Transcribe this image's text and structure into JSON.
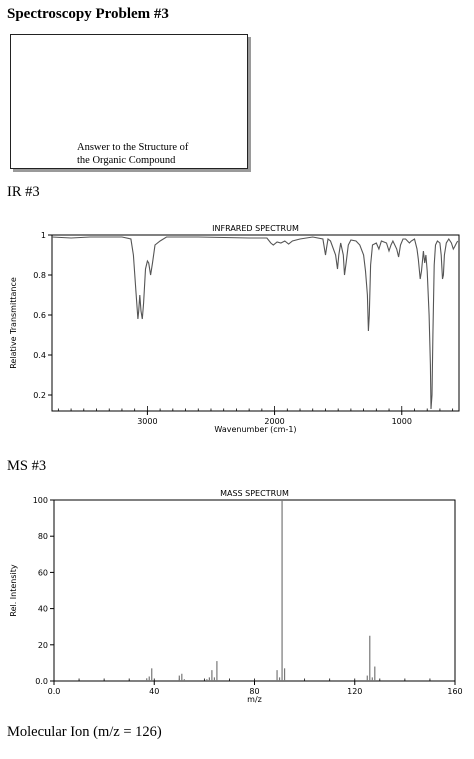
{
  "page": {
    "title": "Spectroscopy Problem #3",
    "answer_box_text": [
      "Answer to the Structure of",
      "the Organic Compound"
    ],
    "ir_label": "IR #3",
    "ms_label": "MS #3",
    "molecular_ion": "Molecular Ion (m/z = 126)"
  },
  "chart_data": [
    {
      "type": "line",
      "title": "INFRARED SPECTRUM",
      "xlabel": "Wavenumber (cm-1)",
      "ylabel": "Relative Transmittance",
      "x_reversed": true,
      "xlim": [
        3750,
        550
      ],
      "ylim": [
        0.12,
        1.0
      ],
      "x_ticks": [
        3000,
        2000,
        1000
      ],
      "y_ticks": [
        0.2,
        0.4,
        0.6,
        0.8,
        1
      ],
      "grid": false,
      "points": [
        [
          3750,
          0.99
        ],
        [
          3600,
          0.985
        ],
        [
          3450,
          0.99
        ],
        [
          3200,
          0.99
        ],
        [
          3130,
          0.98
        ],
        [
          3110,
          0.9
        ],
        [
          3090,
          0.72
        ],
        [
          3075,
          0.58
        ],
        [
          3068,
          0.62
        ],
        [
          3060,
          0.7
        ],
        [
          3050,
          0.62
        ],
        [
          3040,
          0.58
        ],
        [
          3030,
          0.66
        ],
        [
          3015,
          0.83
        ],
        [
          3000,
          0.87
        ],
        [
          2990,
          0.86
        ],
        [
          2975,
          0.8
        ],
        [
          2960,
          0.86
        ],
        [
          2940,
          0.95
        ],
        [
          2900,
          0.97
        ],
        [
          2850,
          0.99
        ],
        [
          2600,
          0.99
        ],
        [
          2200,
          0.985
        ],
        [
          2060,
          0.985
        ],
        [
          2030,
          0.96
        ],
        [
          2010,
          0.95
        ],
        [
          1980,
          0.965
        ],
        [
          1950,
          0.96
        ],
        [
          1920,
          0.97
        ],
        [
          1890,
          0.955
        ],
        [
          1860,
          0.97
        ],
        [
          1800,
          0.98
        ],
        [
          1700,
          0.99
        ],
        [
          1620,
          0.98
        ],
        [
          1600,
          0.9
        ],
        [
          1590,
          0.94
        ],
        [
          1580,
          0.98
        ],
        [
          1560,
          0.97
        ],
        [
          1520,
          0.9
        ],
        [
          1505,
          0.83
        ],
        [
          1495,
          0.9
        ],
        [
          1480,
          0.96
        ],
        [
          1460,
          0.9
        ],
        [
          1450,
          0.8
        ],
        [
          1438,
          0.86
        ],
        [
          1420,
          0.95
        ],
        [
          1400,
          0.975
        ],
        [
          1360,
          0.97
        ],
        [
          1330,
          0.95
        ],
        [
          1300,
          0.9
        ],
        [
          1285,
          0.82
        ],
        [
          1270,
          0.7
        ],
        [
          1262,
          0.52
        ],
        [
          1255,
          0.6
        ],
        [
          1245,
          0.85
        ],
        [
          1230,
          0.95
        ],
        [
          1200,
          0.96
        ],
        [
          1180,
          0.93
        ],
        [
          1160,
          0.97
        ],
        [
          1120,
          0.96
        ],
        [
          1100,
          0.92
        ],
        [
          1085,
          0.95
        ],
        [
          1070,
          0.97
        ],
        [
          1040,
          0.93
        ],
        [
          1025,
          0.89
        ],
        [
          1010,
          0.95
        ],
        [
          990,
          0.98
        ],
        [
          970,
          0.98
        ],
        [
          940,
          0.96
        ],
        [
          925,
          0.97
        ],
        [
          900,
          0.98
        ],
        [
          880,
          0.93
        ],
        [
          870,
          0.88
        ],
        [
          855,
          0.78
        ],
        [
          845,
          0.82
        ],
        [
          830,
          0.92
        ],
        [
          820,
          0.86
        ],
        [
          810,
          0.9
        ],
        [
          800,
          0.82
        ],
        [
          785,
          0.6
        ],
        [
          775,
          0.35
        ],
        [
          770,
          0.13
        ],
        [
          762,
          0.2
        ],
        [
          755,
          0.5
        ],
        [
          745,
          0.85
        ],
        [
          735,
          0.95
        ],
        [
          720,
          0.97
        ],
        [
          700,
          0.96
        ],
        [
          690,
          0.9
        ],
        [
          680,
          0.78
        ],
        [
          673,
          0.8
        ],
        [
          665,
          0.9
        ],
        [
          650,
          0.96
        ],
        [
          630,
          0.98
        ],
        [
          610,
          0.96
        ],
        [
          595,
          0.93
        ],
        [
          585,
          0.94
        ],
        [
          570,
          0.96
        ],
        [
          560,
          0.97
        ]
      ]
    },
    {
      "type": "bar",
      "title": "MASS SPECTRUM",
      "xlabel": "m/z",
      "ylabel": "Rel. Intensity",
      "xlim": [
        0,
        160
      ],
      "ylim": [
        0,
        100
      ],
      "x_ticks": [
        "0.0",
        "40",
        "80",
        "120",
        "160"
      ],
      "y_ticks": [
        "0.0",
        "20",
        "40",
        "60",
        "80",
        "100"
      ],
      "grid": false,
      "peaks": [
        [
          37,
          1.5
        ],
        [
          38,
          2.5
        ],
        [
          39,
          7
        ],
        [
          50,
          3
        ],
        [
          51,
          4
        ],
        [
          52,
          1
        ],
        [
          61,
          1
        ],
        [
          62,
          2
        ],
        [
          63,
          6
        ],
        [
          64,
          2
        ],
        [
          65,
          11
        ],
        [
          89,
          6
        ],
        [
          90,
          2
        ],
        [
          91,
          100
        ],
        [
          92,
          7
        ],
        [
          125,
          3
        ],
        [
          126,
          25
        ],
        [
          127,
          2
        ],
        [
          128,
          8
        ]
      ]
    }
  ]
}
